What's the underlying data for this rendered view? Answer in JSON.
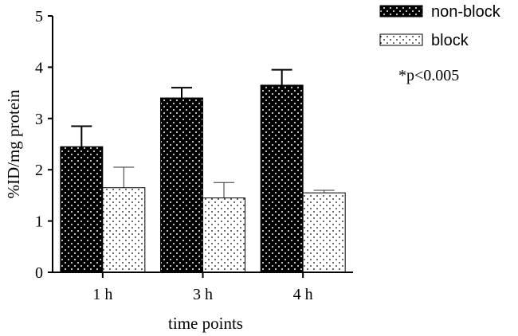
{
  "chart_data": {
    "type": "bar",
    "title": "",
    "xlabel": "time points",
    "ylabel": "%ID/mg protein",
    "categories": [
      "1 h",
      "3 h",
      "4 h"
    ],
    "ylim": [
      0,
      5
    ],
    "yticks": [
      0,
      1,
      2,
      3,
      4,
      5
    ],
    "series": [
      {
        "name": "non-block",
        "values": [
          2.45,
          3.4,
          3.65
        ],
        "errors": [
          0.4,
          0.2,
          0.3
        ],
        "fill": "#000000",
        "dot_color": "#ffffff"
      },
      {
        "name": "block",
        "values": [
          1.65,
          1.45,
          1.55
        ],
        "errors": [
          0.4,
          0.3,
          0.05
        ],
        "fill": "#ffffff",
        "dot_color": "#000000"
      }
    ],
    "annotation": "*p<0.005",
    "legend_position": "top-right",
    "grid": false
  }
}
